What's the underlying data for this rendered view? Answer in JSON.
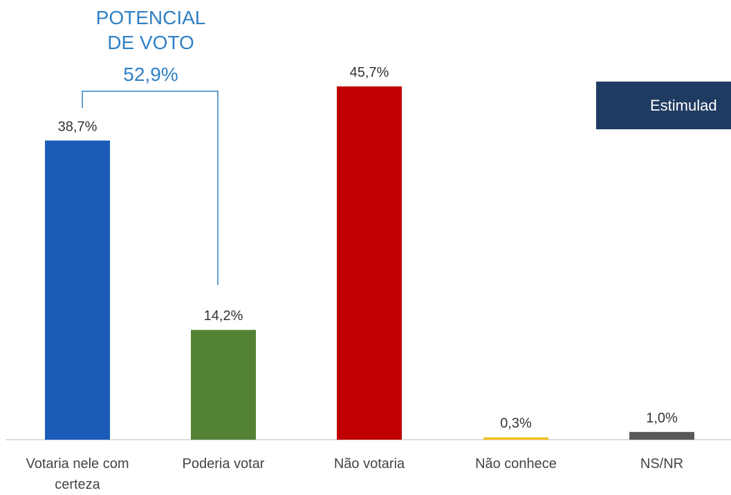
{
  "annotation": {
    "title_line1": "POTENCIAL",
    "title_line2": "DE VOTO",
    "value": "52,9%",
    "color": "#2f80c4"
  },
  "badge": {
    "text": "Estimulad",
    "background": "#1f3b61"
  },
  "chart_data": {
    "type": "bar",
    "categories": [
      "Votaria nele com certeza",
      "Poderia votar",
      "Não votaria",
      "Não conhece",
      "NS/NR"
    ],
    "category_lines": [
      [
        "Votaria nele com",
        "certeza"
      ],
      [
        "Poderia votar"
      ],
      [
        "Não votaria"
      ],
      [
        "Não conhece"
      ],
      [
        "NS/NR"
      ]
    ],
    "values": [
      38.7,
      14.2,
      45.7,
      0.3,
      1.0
    ],
    "value_labels": [
      "38,7%",
      "14,2%",
      "45,7%",
      "0,3%",
      "1,0%"
    ],
    "colors": [
      "#1b5cb8",
      "#548235",
      "#c00000",
      "#f4c020",
      "#595959"
    ],
    "ylim": [
      0,
      50
    ],
    "grid": false,
    "legend": "none"
  }
}
